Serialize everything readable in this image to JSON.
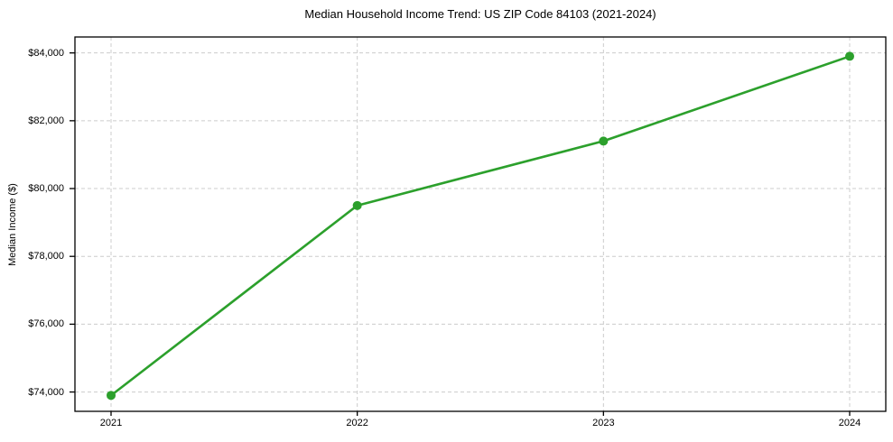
{
  "chart_data": {
    "type": "line",
    "title": "Median Household Income Trend: US ZIP Code 84103 (2021-2024)",
    "xlabel": "",
    "ylabel": "Median Income ($)",
    "categories": [
      "2021",
      "2022",
      "2023",
      "2024"
    ],
    "values": [
      73900,
      79500,
      81400,
      83900
    ],
    "y_ticks": [
      {
        "value": 74000,
        "label": "$74,000"
      },
      {
        "value": 76000,
        "label": "$76,000"
      },
      {
        "value": 78000,
        "label": "$78,000"
      },
      {
        "value": 80000,
        "label": "$80,000"
      },
      {
        "value": 82000,
        "label": "$82,000"
      },
      {
        "value": 84000,
        "label": "$84,000"
      }
    ],
    "ylim": [
      73430,
      84470
    ],
    "grid": "both-dashed",
    "legend": "none",
    "line_color": "#2ca02c",
    "marker_color": "#2ca02c",
    "gridline_color": "#cccccc",
    "axis_color": "#000000",
    "background_color": "#ffffff",
    "marker": "circle"
  }
}
